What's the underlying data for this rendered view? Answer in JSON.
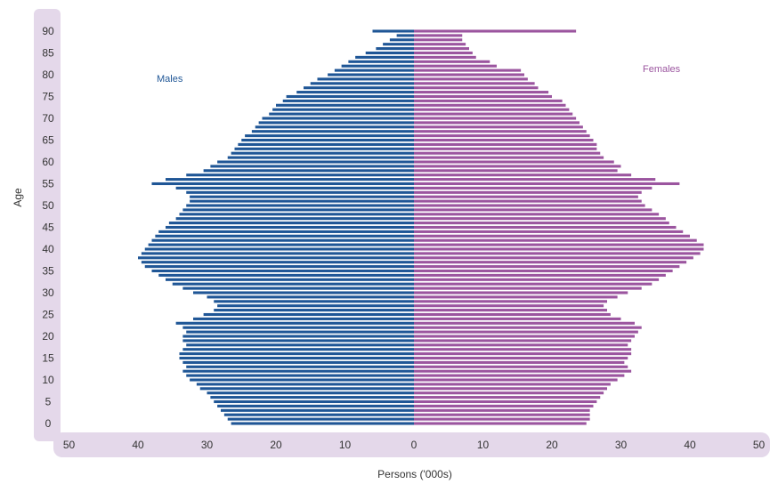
{
  "chart_data": {
    "type": "bar",
    "subtype": "population-pyramid",
    "xlabel": "Persons ('000s)",
    "ylabel": "Age",
    "xlim": [
      -50,
      50
    ],
    "x_ticks": [
      -50,
      -40,
      -30,
      -20,
      -10,
      0,
      10,
      20,
      30,
      40,
      50
    ],
    "x_tick_labels": [
      "50",
      "40",
      "30",
      "20",
      "10",
      "0",
      "10",
      "20",
      "30",
      "40",
      "50"
    ],
    "y_ticks": [
      0,
      5,
      10,
      15,
      20,
      25,
      30,
      35,
      40,
      45,
      50,
      55,
      60,
      65,
      70,
      75,
      80,
      85,
      90
    ],
    "y_tick_labels": [
      "0",
      "5",
      "10",
      "15",
      "20",
      "25",
      "30",
      "35",
      "40",
      "45",
      "50",
      "55",
      "60",
      "65",
      "70",
      "75",
      "80",
      "85",
      "90"
    ],
    "categories": [
      0,
      1,
      2,
      3,
      4,
      5,
      6,
      7,
      8,
      9,
      10,
      11,
      12,
      13,
      14,
      15,
      16,
      17,
      18,
      19,
      20,
      21,
      22,
      23,
      24,
      25,
      26,
      27,
      28,
      29,
      30,
      31,
      32,
      33,
      34,
      35,
      36,
      37,
      38,
      39,
      40,
      41,
      42,
      43,
      44,
      45,
      46,
      47,
      48,
      49,
      50,
      51,
      52,
      53,
      54,
      55,
      56,
      57,
      58,
      59,
      60,
      61,
      62,
      63,
      64,
      65,
      66,
      67,
      68,
      69,
      70,
      71,
      72,
      73,
      74,
      75,
      76,
      77,
      78,
      79,
      80,
      81,
      82,
      83,
      84,
      85,
      86,
      87,
      88,
      89,
      90
    ],
    "series": [
      {
        "name": "Males",
        "color": "#1f5696",
        "values": [
          26.5,
          27.0,
          27.5,
          28.0,
          28.5,
          29.0,
          29.5,
          30.0,
          31.0,
          31.5,
          32.5,
          33.0,
          33.5,
          33.0,
          33.5,
          34.0,
          34.0,
          33.5,
          33.0,
          33.5,
          33.5,
          33.0,
          33.5,
          34.5,
          32.0,
          30.5,
          29.0,
          28.5,
          29.0,
          30.0,
          32.0,
          33.5,
          35.0,
          36.0,
          37.0,
          38.0,
          39.0,
          39.5,
          40.0,
          39.5,
          39.0,
          38.5,
          38.0,
          37.5,
          37.0,
          36.0,
          35.5,
          34.5,
          34.0,
          33.5,
          33.0,
          32.5,
          32.5,
          33.0,
          34.5,
          38.0,
          36.0,
          33.0,
          30.5,
          29.5,
          28.5,
          27.0,
          26.5,
          26.0,
          25.5,
          25.0,
          24.5,
          23.5,
          23.0,
          22.5,
          22.0,
          21.0,
          20.5,
          20.0,
          19.0,
          18.5,
          17.0,
          16.0,
          15.0,
          14.0,
          12.5,
          11.5,
          10.5,
          9.5,
          8.5,
          7.0,
          5.5,
          4.5,
          3.5,
          2.5,
          6.0
        ],
        "label": "Males"
      },
      {
        "name": "Females",
        "color": "#9b559f",
        "values": [
          25.0,
          25.5,
          25.5,
          25.5,
          26.0,
          26.5,
          27.0,
          27.5,
          28.0,
          28.5,
          29.5,
          30.5,
          31.5,
          31.0,
          30.5,
          31.0,
          31.5,
          31.5,
          31.0,
          31.5,
          32.0,
          32.5,
          33.0,
          32.0,
          30.0,
          28.5,
          28.0,
          27.5,
          28.0,
          29.5,
          31.0,
          33.0,
          34.5,
          35.5,
          36.5,
          37.5,
          38.5,
          39.5,
          40.5,
          41.5,
          42.0,
          42.0,
          41.0,
          40.0,
          39.0,
          38.0,
          37.0,
          36.5,
          35.5,
          34.5,
          33.5,
          33.0,
          32.5,
          33.0,
          34.5,
          38.5,
          35.0,
          31.5,
          29.5,
          30.0,
          29.0,
          27.5,
          27.0,
          26.5,
          26.5,
          26.0,
          25.5,
          25.0,
          24.5,
          24.0,
          23.5,
          23.0,
          22.5,
          22.0,
          21.5,
          20.0,
          19.5,
          18.0,
          17.5,
          16.5,
          16.0,
          15.5,
          12.0,
          11.0,
          9.0,
          8.5,
          8.0,
          7.5,
          7.0,
          7.0,
          23.5
        ],
        "label": "Females"
      }
    ]
  },
  "colors": {
    "axis_band": "#e4d8ea",
    "males": "#1f5696",
    "females": "#9b559f"
  }
}
